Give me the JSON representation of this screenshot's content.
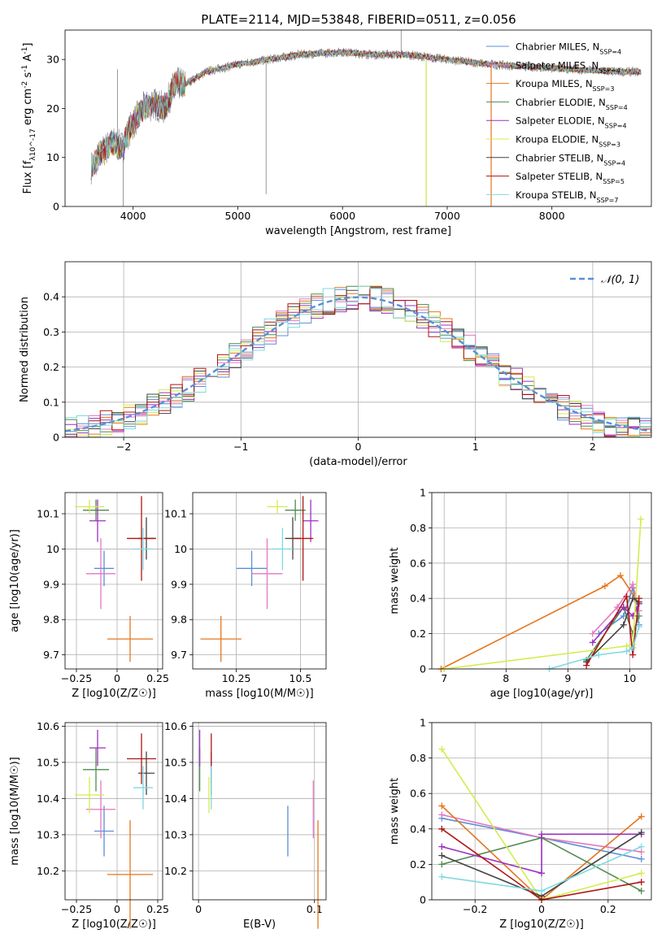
{
  "chart_data": [
    {
      "id": "spectrum",
      "type": "line",
      "title": "PLATE=2114, MJD=53848, FIBERID=0511, z=0.056",
      "xlabel": "wavelength [Angstrom, rest frame]",
      "ylabel": "Flux [f_λ10^-17 erg cm^-2 s^-1 A^-1]",
      "xlim": [
        3350,
        8950
      ],
      "ylim": [
        0,
        36
      ],
      "xticks": [
        4000,
        5000,
        6000,
        7000,
        8000
      ],
      "yticks": [
        0,
        10,
        20,
        30
      ],
      "grid": false,
      "legend_position": "top-right",
      "spectrum_range": [
        3600,
        8850
      ],
      "continuum_knots": {
        "x": [
          3600,
          3700,
          3800,
          3900,
          3950,
          4000,
          4100,
          4200,
          4300,
          4400,
          4500,
          4700,
          5000,
          5300,
          5600,
          6000,
          6300,
          6600,
          7000,
          7400,
          7800,
          8200,
          8600,
          8850
        ],
        "y": [
          8,
          11,
          13,
          12,
          15,
          17,
          20,
          21,
          20,
          25,
          25,
          27.5,
          29,
          30,
          31,
          31.5,
          31,
          31,
          30,
          29,
          28.5,
          28,
          27.5,
          27.5
        ]
      },
      "series": [
        {
          "name": "Chabrier MILES, N_SSP=4",
          "color": "#5b8ed9"
        },
        {
          "name": "Salpeter MILES, N_SSP=4",
          "color": "#e377c2"
        },
        {
          "name": "Kroupa MILES, N_SSP=3",
          "color": "#e6761e"
        },
        {
          "name": "Chabrier ELODIE, N_SSP=4",
          "color": "#4f8a4f"
        },
        {
          "name": "Salpeter ELODIE, N_SSP=4",
          "color": "#9b30bf"
        },
        {
          "name": "Kroupa ELODIE, N_SSP=3",
          "color": "#d4ec4c"
        },
        {
          "name": "Chabrier STELIB, N_SSP=4",
          "color": "#444444"
        },
        {
          "name": "Salpeter STELIB, N_SSP=5",
          "color": "#b01515"
        },
        {
          "name": "Kroupa STELIB, N_SSP=7",
          "color": "#7fd9e0"
        }
      ],
      "spikes": [
        {
          "x": 3850,
          "y": 28
        },
        {
          "x": 3905,
          "y": 0
        },
        {
          "x": 5270,
          "y": 2.5
        },
        {
          "x": 6560,
          "y": 36
        },
        {
          "x": 6800,
          "y": 0
        },
        {
          "x": 7420,
          "y": 0
        }
      ]
    },
    {
      "id": "residuals",
      "type": "histogram",
      "xlabel": "(data-model)/error",
      "ylabel": "Normed distribution",
      "xlim": [
        -2.5,
        2.5
      ],
      "ylim": [
        0,
        0.5
      ],
      "xticks": [
        -2,
        -1,
        0,
        1,
        2
      ],
      "yticks": [
        0.0,
        0.1,
        0.2,
        0.3,
        0.4
      ],
      "grid": true,
      "legend_position": "top-right",
      "normal_curve": {
        "label": "N(0,1)",
        "color": "#5b8ed9",
        "mean": 0,
        "sigma": 1
      },
      "bin_width": 0.1
    },
    {
      "id": "age_vs_Z",
      "type": "scatter",
      "xlabel": "Z [log10(Z/Z☉)]",
      "ylabel": "age  [log10(age/yr)]",
      "xlim": [
        -0.32,
        0.28
      ],
      "ylim": [
        9.66,
        10.16
      ],
      "xticks": [
        -0.25,
        0.0,
        0.25
      ],
      "yticks": [
        9.7,
        9.8,
        9.9,
        10.0,
        10.1
      ],
      "grid": true,
      "points": [
        {
          "color": "#5b8ed9",
          "x": -0.08,
          "xerr": 0.06,
          "y": 9.945,
          "yerr": 0.05
        },
        {
          "color": "#e377c2",
          "x": -0.1,
          "xerr": 0.09,
          "y": 9.93,
          "yerr": 0.1
        },
        {
          "color": "#e6761e",
          "x": 0.08,
          "xerr": 0.14,
          "y": 9.745,
          "yerr": 0.065
        },
        {
          "color": "#4f8a4f",
          "x": -0.13,
          "xerr": 0.08,
          "y": 10.11,
          "yerr": 0.03
        },
        {
          "color": "#9b30bf",
          "x": -0.12,
          "xerr": 0.05,
          "y": 10.08,
          "yerr": 0.06
        },
        {
          "color": "#d4ec4c",
          "x": -0.17,
          "xerr": 0.09,
          "y": 10.12,
          "yerr": 0.02
        },
        {
          "color": "#444444",
          "x": 0.18,
          "xerr": 0.05,
          "y": 10.03,
          "yerr": 0.06
        },
        {
          "color": "#b01515",
          "x": 0.15,
          "xerr": 0.09,
          "y": 10.03,
          "yerr": 0.12
        },
        {
          "color": "#7fd9e0",
          "x": 0.16,
          "xerr": 0.06,
          "y": 10.0,
          "yerr": 0.06
        }
      ]
    },
    {
      "id": "age_vs_mass",
      "type": "scatter",
      "xlabel": "mass [log10(M/M☉)]",
      "xlim": [
        10.08,
        10.6
      ],
      "ylim": [
        9.66,
        10.16
      ],
      "xticks": [
        10.25,
        10.5
      ],
      "yticks": [
        9.7,
        9.8,
        9.9,
        10.0,
        10.1
      ],
      "grid": true,
      "points": [
        {
          "color": "#5b8ed9",
          "x": 10.31,
          "xerr": 0.06,
          "y": 9.945,
          "yerr": 0.05
        },
        {
          "color": "#e377c2",
          "x": 10.37,
          "xerr": 0.06,
          "y": 9.93,
          "yerr": 0.1
        },
        {
          "color": "#e6761e",
          "x": 10.19,
          "xerr": 0.08,
          "y": 9.745,
          "yerr": 0.065
        },
        {
          "color": "#4f8a4f",
          "x": 10.48,
          "xerr": 0.04,
          "y": 10.11,
          "yerr": 0.03
        },
        {
          "color": "#9b30bf",
          "x": 10.54,
          "xerr": 0.03,
          "y": 10.08,
          "yerr": 0.06
        },
        {
          "color": "#d4ec4c",
          "x": 10.41,
          "xerr": 0.04,
          "y": 10.12,
          "yerr": 0.02
        },
        {
          "color": "#444444",
          "x": 10.47,
          "xerr": 0.03,
          "y": 10.03,
          "yerr": 0.06
        },
        {
          "color": "#b01515",
          "x": 10.51,
          "xerr": 0.04,
          "y": 10.03,
          "yerr": 0.12
        },
        {
          "color": "#7fd9e0",
          "x": 10.43,
          "xerr": 0.04,
          "y": 10.0,
          "yerr": 0.06
        }
      ]
    },
    {
      "id": "weight_vs_age",
      "type": "line",
      "xlabel": "age  [log10(age/yr)]",
      "ylabel": "mass weight",
      "xlim": [
        6.8,
        10.35
      ],
      "ylim": [
        0,
        1.0
      ],
      "xticks": [
        7,
        8,
        9,
        10
      ],
      "yticks": [
        0.0,
        0.2,
        0.4,
        0.6,
        0.8,
        1.0
      ],
      "grid": true,
      "series": [
        {
          "color": "#5b8ed9",
          "x": [
            9.5,
            9.9,
            10.05,
            10.15
          ],
          "y": [
            0.2,
            0.3,
            0.46,
            0.25
          ]
        },
        {
          "color": "#e377c2",
          "x": [
            9.4,
            9.8,
            10.05,
            10.15
          ],
          "y": [
            0.2,
            0.35,
            0.48,
            0.33
          ]
        },
        {
          "color": "#e6761e",
          "x": [
            6.95,
            9.6,
            9.85,
            10.15
          ],
          "y": [
            0.0,
            0.47,
            0.53,
            0.37
          ]
        },
        {
          "color": "#4f8a4f",
          "x": [
            9.3,
            9.9,
            10.05,
            10.15
          ],
          "y": [
            0.05,
            0.35,
            0.2,
            0.3
          ]
        },
        {
          "color": "#9b30bf",
          "x": [
            9.4,
            9.9,
            10.05,
            10.15
          ],
          "y": [
            0.15,
            0.35,
            0.3,
            0.37
          ]
        },
        {
          "color": "#d4ec4c",
          "x": [
            7.0,
            9.95,
            10.05,
            10.18
          ],
          "y": [
            0.0,
            0.13,
            0.14,
            0.85
          ]
        },
        {
          "color": "#444444",
          "x": [
            9.3,
            9.9,
            10.05,
            10.15
          ],
          "y": [
            0.04,
            0.25,
            0.4,
            0.38
          ]
        },
        {
          "color": "#b01515",
          "x": [
            9.3,
            9.95,
            10.05,
            10.15
          ],
          "y": [
            0.02,
            0.41,
            0.08,
            0.4
          ]
        },
        {
          "color": "#7fd9e0",
          "x": [
            8.7,
            9.5,
            9.95,
            10.05,
            10.15
          ],
          "y": [
            0.0,
            0.08,
            0.1,
            0.12,
            0.24
          ]
        }
      ]
    },
    {
      "id": "mass_vs_Z",
      "type": "scatter",
      "xlabel": "Z [log10(Z/Z☉)]",
      "ylabel": "mass [log10(M/M☉)]",
      "xlim": [
        -0.32,
        0.28
      ],
      "ylim": [
        10.12,
        10.61
      ],
      "xticks": [
        -0.25,
        0.0,
        0.25
      ],
      "yticks": [
        10.2,
        10.3,
        10.4,
        10.5,
        10.6
      ],
      "grid": true,
      "points": [
        {
          "color": "#5b8ed9",
          "x": -0.08,
          "xerr": 0.06,
          "y": 10.31,
          "yerr": 0.07
        },
        {
          "color": "#e377c2",
          "x": -0.1,
          "xerr": 0.09,
          "y": 10.37,
          "yerr": 0.08
        },
        {
          "color": "#e6761e",
          "x": 0.08,
          "xerr": 0.14,
          "y": 10.19,
          "yerr": 0.15
        },
        {
          "color": "#4f8a4f",
          "x": -0.13,
          "xerr": 0.08,
          "y": 10.48,
          "yerr": 0.06
        },
        {
          "color": "#9b30bf",
          "x": -0.12,
          "xerr": 0.05,
          "y": 10.54,
          "yerr": 0.05
        },
        {
          "color": "#d4ec4c",
          "x": -0.17,
          "xerr": 0.09,
          "y": 10.41,
          "yerr": 0.05
        },
        {
          "color": "#444444",
          "x": 0.18,
          "xerr": 0.05,
          "y": 10.47,
          "yerr": 0.06
        },
        {
          "color": "#b01515",
          "x": 0.15,
          "xerr": 0.09,
          "y": 10.51,
          "yerr": 0.07
        },
        {
          "color": "#7fd9e0",
          "x": 0.16,
          "xerr": 0.06,
          "y": 10.43,
          "yerr": 0.06
        }
      ]
    },
    {
      "id": "mass_vs_ebv",
      "type": "scatter",
      "xlabel": "E(B-V)",
      "xlim": [
        -0.005,
        0.11
      ],
      "ylim": [
        10.12,
        10.61
      ],
      "xticks": [
        0,
        0.1
      ],
      "yticks": [
        10.2,
        10.3,
        10.4,
        10.5,
        10.6
      ],
      "grid": true,
      "points": [
        {
          "color": "#5b8ed9",
          "x": 0.077,
          "y": 10.31,
          "yerr": 0.07
        },
        {
          "color": "#e377c2",
          "x": 0.099,
          "y": 10.37,
          "yerr": 0.08
        },
        {
          "color": "#e6761e",
          "x": 0.103,
          "y": 10.19,
          "yerr": 0.15
        },
        {
          "color": "#4f8a4f",
          "x": 0.001,
          "y": 10.48,
          "yerr": 0.06
        },
        {
          "color": "#9b30bf",
          "x": 0.001,
          "y": 10.54,
          "yerr": 0.05
        },
        {
          "color": "#d4ec4c",
          "x": 0.009,
          "y": 10.41,
          "yerr": 0.05
        },
        {
          "color": "#444444",
          "x": 0.011,
          "y": 10.47,
          "yerr": 0.06
        },
        {
          "color": "#b01515",
          "x": 0.011,
          "y": 10.51,
          "yerr": 0.07
        },
        {
          "color": "#7fd9e0",
          "x": 0.011,
          "y": 10.43,
          "yerr": 0.06
        }
      ]
    },
    {
      "id": "weight_vs_Z",
      "type": "line",
      "xlabel": "Z [log10(Z/Z☉)]",
      "ylabel": "mass weight",
      "xlim": [
        -0.33,
        0.33
      ],
      "ylim": [
        0,
        1.0
      ],
      "xticks": [
        -0.2,
        0.0,
        0.2
      ],
      "yticks": [
        0.0,
        0.2,
        0.4,
        0.6,
        0.8,
        1.0
      ],
      "grid": true,
      "series": [
        {
          "color": "#5b8ed9",
          "x": [
            -0.3,
            0.0,
            0.3
          ],
          "y": [
            0.46,
            0.35,
            0.23
          ]
        },
        {
          "color": "#e377c2",
          "x": [
            -0.3,
            0.0,
            0.3
          ],
          "y": [
            0.48,
            0.35,
            0.27
          ]
        },
        {
          "color": "#e6761e",
          "x": [
            -0.3,
            0.0,
            0.3
          ],
          "y": [
            0.53,
            0.0,
            0.47
          ]
        },
        {
          "color": "#4f8a4f",
          "x": [
            -0.3,
            0.0,
            0.3
          ],
          "y": [
            0.2,
            0.35,
            0.05
          ]
        },
        {
          "color": "#9b30bf",
          "x": [
            -0.3,
            0.0,
            0.0,
            0.3
          ],
          "y": [
            0.3,
            0.15,
            0.37,
            0.37
          ]
        },
        {
          "color": "#d4ec4c",
          "x": [
            -0.3,
            0.0,
            0.3
          ],
          "y": [
            0.85,
            0.0,
            0.15
          ]
        },
        {
          "color": "#444444",
          "x": [
            -0.3,
            0.0,
            0.3
          ],
          "y": [
            0.25,
            0.02,
            0.38
          ]
        },
        {
          "color": "#b01515",
          "x": [
            -0.3,
            0.0,
            0.3
          ],
          "y": [
            0.4,
            0.0,
            0.1
          ]
        },
        {
          "color": "#7fd9e0",
          "x": [
            -0.3,
            0.0,
            0.3
          ],
          "y": [
            0.13,
            0.05,
            0.3
          ]
        }
      ]
    }
  ]
}
